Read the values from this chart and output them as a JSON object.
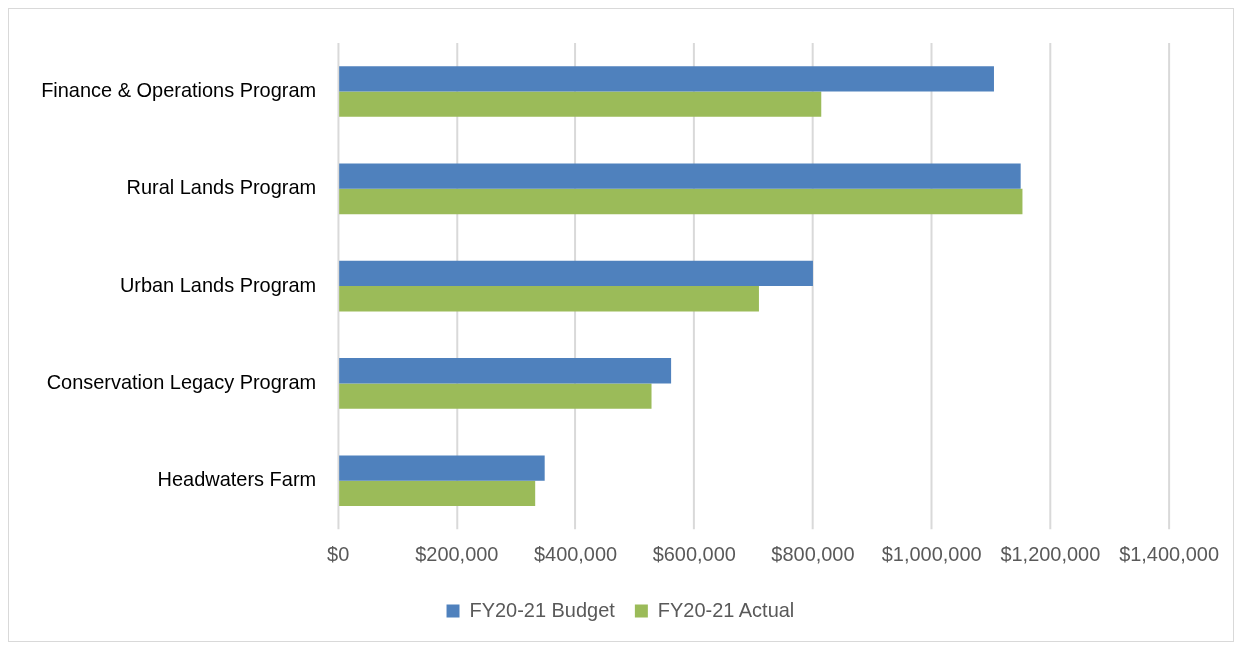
{
  "chart_data": {
    "type": "bar",
    "orientation": "horizontal",
    "categories": [
      "Finance & Operations Program",
      "Rural Lands Program",
      "Urban Lands Program",
      "Conservation Legacy Program",
      "Headwaters Farm"
    ],
    "series": [
      {
        "name": "FY20-21 Budget",
        "color": "#4f81bd",
        "values": [
          1105000,
          1150000,
          800000,
          561000,
          348000
        ]
      },
      {
        "name": "FY20-21 Actual",
        "color": "#9bbb59",
        "values": [
          814000,
          1153000,
          709000,
          528000,
          332000
        ]
      }
    ],
    "xlim": [
      0,
      1400000
    ],
    "xticks": [
      {
        "value": 0,
        "label": "$0"
      },
      {
        "value": 200000,
        "label": "$200,000"
      },
      {
        "value": 400000,
        "label": "$400,000"
      },
      {
        "value": 600000,
        "label": "$600,000"
      },
      {
        "value": 800000,
        "label": "$800,000"
      },
      {
        "value": 1000000,
        "label": "$1,000,000"
      },
      {
        "value": 1200000,
        "label": "$1,200,000"
      },
      {
        "value": 1400000,
        "label": "$1,400,000"
      }
    ],
    "grid": "x",
    "legend": "bottom"
  }
}
